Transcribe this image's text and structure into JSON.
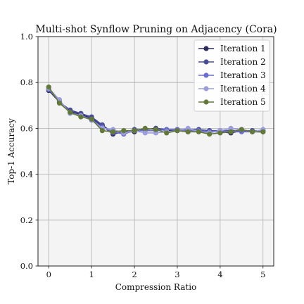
{
  "chart_data": {
    "type": "line",
    "title": "Multi-shot Synflow Pruning on Adjacency (Cora)",
    "xlabel": "Compression Ratio",
    "ylabel": "Top-1 Accuracy",
    "xlim": [
      -0.25,
      5.25
    ],
    "ylim": [
      0.0,
      1.0
    ],
    "xticks": [
      0,
      1,
      2,
      3,
      4,
      5
    ],
    "yticks": [
      0.0,
      0.2,
      0.4,
      0.6,
      0.8,
      1.0
    ],
    "xtick_labels": [
      "0",
      "1",
      "2",
      "3",
      "4",
      "5"
    ],
    "ytick_labels": [
      "0.0",
      "0.2",
      "0.4",
      "0.6",
      "0.8",
      "1.0"
    ],
    "grid": true,
    "legend_position": "top-right",
    "background": "#f4f4f4",
    "x": [
      0,
      0.25,
      0.5,
      0.75,
      1.0,
      1.25,
      1.5,
      1.75,
      2.0,
      2.25,
      2.5,
      2.75,
      3.0,
      3.25,
      3.5,
      3.75,
      4.0,
      4.25,
      4.5,
      4.75,
      5.0
    ],
    "series": [
      {
        "name": "Iteration 1",
        "color": "#2b2d5c",
        "values": [
          0.765,
          0.715,
          0.675,
          0.66,
          0.645,
          0.61,
          0.575,
          0.585,
          0.585,
          0.595,
          0.6,
          0.59,
          0.59,
          0.585,
          0.59,
          0.585,
          0.585,
          0.58,
          0.59,
          0.585,
          0.585
        ]
      },
      {
        "name": "Iteration 2",
        "color": "#4a4c9a",
        "values": [
          0.77,
          0.715,
          0.68,
          0.665,
          0.65,
          0.615,
          0.58,
          0.58,
          0.595,
          0.595,
          0.6,
          0.595,
          0.595,
          0.595,
          0.595,
          0.59,
          0.59,
          0.59,
          0.59,
          0.59,
          0.59
        ]
      },
      {
        "name": "Iteration 3",
        "color": "#6b6ecb",
        "values": [
          0.77,
          0.72,
          0.67,
          0.655,
          0.64,
          0.605,
          0.585,
          0.575,
          0.59,
          0.59,
          0.59,
          0.595,
          0.595,
          0.59,
          0.59,
          0.585,
          0.59,
          0.585,
          0.585,
          0.585,
          0.59
        ]
      },
      {
        "name": "Iteration 4",
        "color": "#9c9edc",
        "values": [
          0.775,
          0.725,
          0.665,
          0.655,
          0.635,
          0.6,
          0.595,
          0.58,
          0.59,
          0.58,
          0.58,
          0.585,
          0.59,
          0.6,
          0.585,
          0.58,
          0.59,
          0.6,
          0.595,
          0.585,
          0.595
        ]
      },
      {
        "name": "Iteration 5",
        "color": "#637939",
        "values": [
          0.78,
          0.71,
          0.67,
          0.65,
          0.64,
          0.59,
          0.585,
          0.59,
          0.59,
          0.6,
          0.595,
          0.58,
          0.59,
          0.585,
          0.585,
          0.575,
          0.58,
          0.585,
          0.595,
          0.585,
          0.585
        ]
      }
    ]
  }
}
